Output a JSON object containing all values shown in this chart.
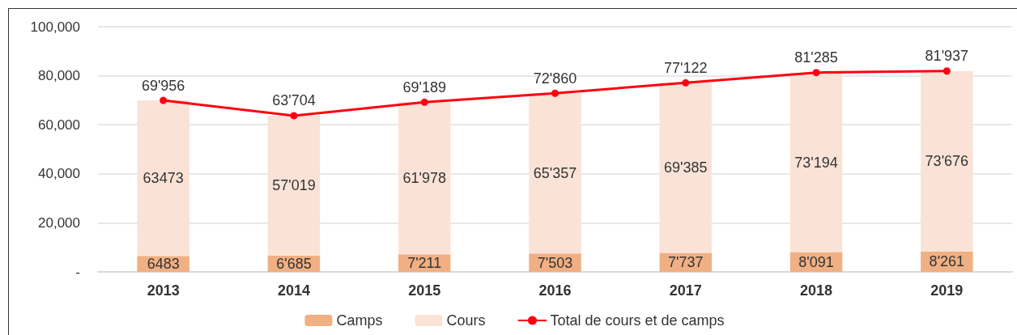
{
  "chart_data": {
    "type": "bar",
    "stacked": true,
    "categories": [
      "2013",
      "2014",
      "2015",
      "2016",
      "2017",
      "2018",
      "2019"
    ],
    "series": [
      {
        "name": "Camps",
        "color": "#f0b084",
        "values": [
          6483,
          6685,
          7211,
          7503,
          7737,
          8091,
          8261
        ],
        "value_labels": [
          "6483",
          "6'685",
          "7'211",
          "7'503",
          "7'737",
          "8'091",
          "8'261"
        ]
      },
      {
        "name": "Cours",
        "color": "#fae3d6",
        "values": [
          63473,
          57019,
          61978,
          65357,
          69385,
          73194,
          73676
        ],
        "value_labels": [
          "63473",
          "57'019",
          "61'978",
          "65'357",
          "69'385",
          "73'194",
          "73'676"
        ]
      },
      {
        "name": "Total de cours et de camps",
        "type": "line",
        "color": "#ff0010",
        "marker": "circle",
        "values": [
          69956,
          63704,
          69189,
          72860,
          77122,
          81285,
          81937
        ],
        "value_labels": [
          "69'956",
          "63'704",
          "69'189",
          "72'860",
          "77'122",
          "81'285",
          "81'937"
        ]
      }
    ],
    "ylim": [
      0,
      100000
    ],
    "yticks": [
      {
        "value": 0,
        "label": "-"
      },
      {
        "value": 20000,
        "label": "20,000"
      },
      {
        "value": 40000,
        "label": "40,000"
      },
      {
        "value": 60000,
        "label": "60,000"
      },
      {
        "value": 80000,
        "label": "80,000"
      },
      {
        "value": 100000,
        "label": "100,000"
      }
    ],
    "grid": "y",
    "legend": "bottom"
  }
}
